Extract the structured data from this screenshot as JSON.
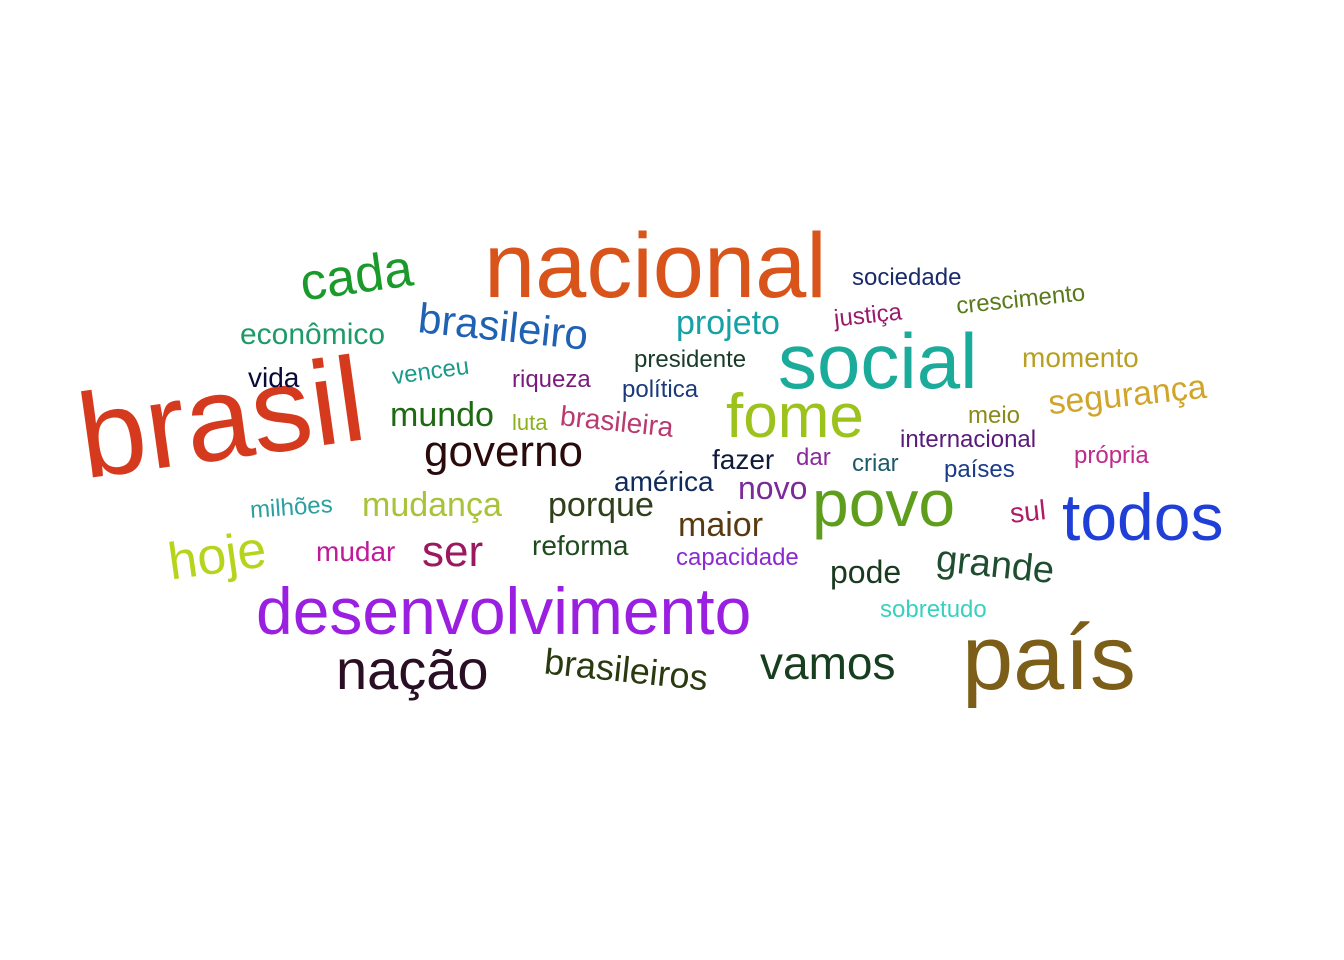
{
  "words": [
    {
      "text": "brasil",
      "color": "#d63a1e"
    },
    {
      "text": "nacional",
      "color": "#d9541a"
    },
    {
      "text": "país",
      "color": "#7c5e18"
    },
    {
      "text": "social",
      "color": "#1bab9a"
    },
    {
      "text": "desenvolvimento",
      "color": "#9a1fe0"
    },
    {
      "text": "todos",
      "color": "#1f3fd6"
    },
    {
      "text": "povo",
      "color": "#5f9e1c"
    },
    {
      "text": "fome",
      "color": "#9cc21c"
    },
    {
      "text": "nação",
      "color": "#2a0f24"
    },
    {
      "text": "cada",
      "color": "#1a9a2a"
    },
    {
      "text": "hoje",
      "color": "#b5d41c"
    },
    {
      "text": "vamos",
      "color": "#173e1e"
    },
    {
      "text": "brasileiro",
      "color": "#1f62b3"
    },
    {
      "text": "governo",
      "color": "#2a0a0a"
    },
    {
      "text": "ser",
      "color": "#9a1a60"
    },
    {
      "text": "grande",
      "color": "#1e4d2f"
    },
    {
      "text": "brasileiros",
      "color": "#2a3a10"
    },
    {
      "text": "projeto",
      "color": "#16a1a6"
    },
    {
      "text": "segurança",
      "color": "#d1a52a"
    },
    {
      "text": "mundo",
      "color": "#1e6a12"
    },
    {
      "text": "mudança",
      "color": "#a8c23a"
    },
    {
      "text": "porque",
      "color": "#30401a"
    },
    {
      "text": "maior",
      "color": "#5a3a10"
    },
    {
      "text": "pode",
      "color": "#1a3a20"
    },
    {
      "text": "novo",
      "color": "#7a2a9a"
    },
    {
      "text": "econômico",
      "color": "#1e9a6a"
    },
    {
      "text": "momento",
      "color": "#b8a020"
    },
    {
      "text": "brasileira",
      "color": "#b83a70"
    },
    {
      "text": "reforma",
      "color": "#1e4a1e"
    },
    {
      "text": "américa",
      "color": "#102a5a"
    },
    {
      "text": "fazer",
      "color": "#101a3a"
    },
    {
      "text": "vida",
      "color": "#0a0a3a"
    },
    {
      "text": "mudar",
      "color": "#c01a9a"
    },
    {
      "text": "crescimento",
      "color": "#5a7a1a"
    },
    {
      "text": "sociedade",
      "color": "#1a2a6a"
    },
    {
      "text": "presidente",
      "color": "#1a3a2a"
    },
    {
      "text": "internacional",
      "color": "#5a1a7a"
    },
    {
      "text": "riqueza",
      "color": "#7a1a7a"
    },
    {
      "text": "política",
      "color": "#1a3a7a"
    },
    {
      "text": "venceu",
      "color": "#1a9a8a"
    },
    {
      "text": "milhões",
      "color": "#2aa0a0"
    },
    {
      "text": "capacidade",
      "color": "#8a2ad0"
    },
    {
      "text": "justiça",
      "color": "#9a1a6a"
    },
    {
      "text": "sul",
      "color": "#b01a6a"
    },
    {
      "text": "países",
      "color": "#1a3a8a"
    },
    {
      "text": "criar",
      "color": "#1a5a6a"
    },
    {
      "text": "própria",
      "color": "#c02a8a"
    },
    {
      "text": "meio",
      "color": "#8a8a1a"
    },
    {
      "text": "dar",
      "color": "#8a2a9a"
    },
    {
      "text": "luta",
      "color": "#8ab01a"
    },
    {
      "text": "sobretudo",
      "color": "#3ad0c0"
    }
  ]
}
